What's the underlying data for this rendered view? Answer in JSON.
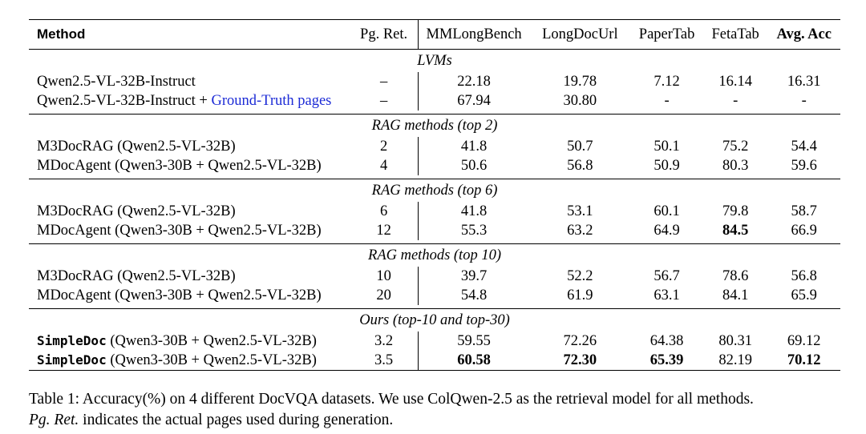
{
  "table": {
    "headers": {
      "method": "Method",
      "pg_ret": "Pg. Ret.",
      "mmlongbench": "MMLongBench",
      "longdocurl": "LongDocUrl",
      "papertab": "PaperTab",
      "fetatab": "FetaTab",
      "avg": "Avg. Acc"
    },
    "sections": [
      {
        "title": "LVMs",
        "rows": [
          {
            "method": "Qwen2.5-VL-32B-Instruct",
            "pg": "–",
            "v": [
              "22.18",
              "19.78",
              "7.12",
              "16.14",
              "16.31"
            ]
          },
          {
            "method_prefix": "Qwen2.5-VL-32B-Instruct + ",
            "method_link": "Ground-Truth pages",
            "pg": "–",
            "v": [
              "67.94",
              "30.80",
              "-",
              "-",
              "-"
            ]
          }
        ]
      },
      {
        "title": "RAG methods (top 2)",
        "rows": [
          {
            "method": "M3DocRAG (Qwen2.5-VL-32B)",
            "pg": "2",
            "v": [
              "41.8",
              "50.7",
              "50.1",
              "75.2",
              "54.4"
            ]
          },
          {
            "method": "MDocAgent (Qwen3-30B + Qwen2.5-VL-32B)",
            "pg": "4",
            "v": [
              "50.6",
              "56.8",
              "50.9",
              "80.3",
              "59.6"
            ]
          }
        ]
      },
      {
        "title": "RAG methods (top 6)",
        "rows": [
          {
            "method": "M3DocRAG (Qwen2.5-VL-32B)",
            "pg": "6",
            "v": [
              "41.8",
              "53.1",
              "60.1",
              "79.8",
              "58.7"
            ]
          },
          {
            "method": "MDocAgent (Qwen3-30B + Qwen2.5-VL-32B)",
            "pg": "12",
            "v": [
              "55.3",
              "63.2",
              "64.9",
              "84.5",
              "66.9"
            ]
          }
        ]
      },
      {
        "title": "RAG methods (top 10)",
        "rows": [
          {
            "method": "M3DocRAG (Qwen2.5-VL-32B)",
            "pg": "10",
            "v": [
              "39.7",
              "52.2",
              "56.7",
              "78.6",
              "56.8"
            ]
          },
          {
            "method": "MDocAgent (Qwen3-30B + Qwen2.5-VL-32B)",
            "pg": "20",
            "v": [
              "54.8",
              "61.9",
              "63.1",
              "84.1",
              "65.9"
            ]
          }
        ]
      },
      {
        "title": "Ours (top-10 and top-30)",
        "rows": [
          {
            "method_code": "SimpleDoc",
            "method_rest": " (Qwen3-30B + Qwen2.5-VL-32B)",
            "pg": "3.2",
            "v": [
              "59.55",
              "72.26",
              "64.38",
              "80.31",
              "69.12"
            ]
          },
          {
            "method_code": "SimpleDoc",
            "method_rest": " (Qwen3-30B + Qwen2.5-VL-32B)",
            "pg": "3.5",
            "v": [
              "60.58",
              "72.30",
              "65.39",
              "82.19",
              "70.12"
            ]
          }
        ]
      }
    ]
  },
  "caption": {
    "line1": "Table 1: Accuracy(%) on 4 different DocVQA datasets. We use ColQwen-2.5 as the retrieval model for all methods.",
    "line2_italic": "Pg. Ret.",
    "line2_rest": " indicates the actual pages used during generation."
  }
}
